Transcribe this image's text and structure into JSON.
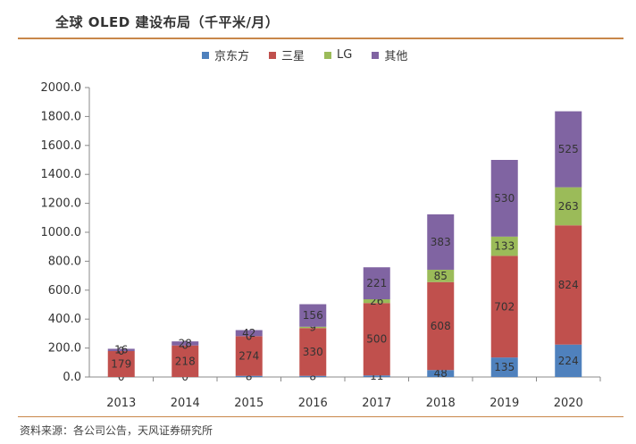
{
  "title": "全球 OLED 建设布局（千平米/月）",
  "source": "资料来源：各公司公告，天风证券研究所",
  "chart_data": {
    "type": "bar",
    "stacked": true,
    "categories": [
      "2013",
      "2014",
      "2015",
      "2016",
      "2017",
      "2018",
      "2019",
      "2020"
    ],
    "series": [
      {
        "name": "京东方",
        "color": "#4f81bd",
        "values": [
          0,
          0,
          8,
          8,
          11,
          48,
          135,
          224
        ]
      },
      {
        "name": "三星",
        "color": "#c0504d",
        "values": [
          179,
          218,
          274,
          330,
          500,
          608,
          702,
          824
        ]
      },
      {
        "name": "LG",
        "color": "#9bbb59",
        "values": [
          0,
          0,
          0,
          9,
          26,
          85,
          133,
          263
        ]
      },
      {
        "name": "其他",
        "color": "#8064a2",
        "values": [
          16,
          28,
          42,
          156,
          221,
          383,
          530,
          525
        ]
      }
    ],
    "ylim": [
      0,
      2000
    ],
    "yticks": [
      "0.0",
      "200.0",
      "400.0",
      "600.0",
      "800.0",
      "1000.0",
      "1200.0",
      "1400.0",
      "1600.0",
      "1800.0",
      "2000.0"
    ],
    "legend_position": "top",
    "grid": false
  }
}
